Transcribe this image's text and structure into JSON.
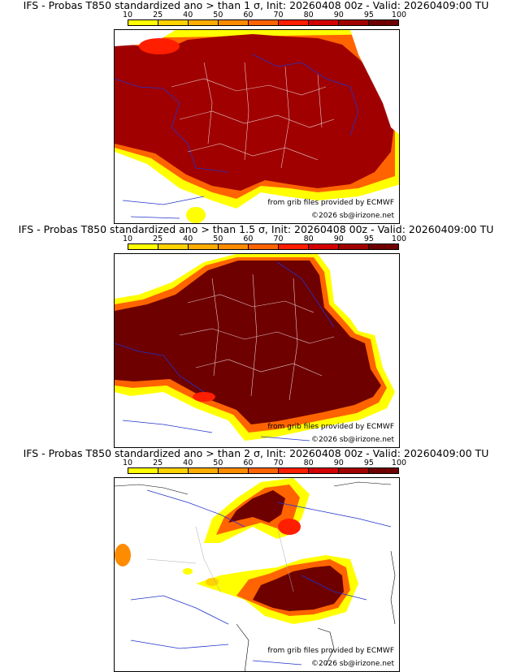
{
  "colorbar": {
    "ticks": [
      "10",
      "25",
      "40",
      "50",
      "60",
      "70",
      "80",
      "90",
      "95",
      "100"
    ],
    "colors": [
      "#ffff00",
      "#ffd200",
      "#ffad00",
      "#ff8c00",
      "#ff6400",
      "#ff1e00",
      "#d20000",
      "#a00000",
      "#6e0000"
    ]
  },
  "panels": [
    {
      "title": "IFS - Probas T850  standardized ano > than 1 σ, Init: 20260408 00z - Valid: 20260409:00 TU",
      "credit_1": "from grib files provided by ECMWF",
      "credit_2": "©2026 sb@irizone.net"
    },
    {
      "title": "IFS - Probas T850  standardized ano > than 1.5 σ, Init: 20260408 00z - Valid: 20260409:00 TU",
      "credit_1": "from grib files provided by ECMWF",
      "credit_2": "©2026 sb@irizone.net"
    },
    {
      "title": "IFS - Probas T850  standardized ano > than 2 σ, Init: 20260408 00z - Valid: 20260409:00 TU",
      "credit_1": "from grib files provided by ECMWF",
      "credit_2": "©2026 sb@irizone.net"
    }
  ]
}
